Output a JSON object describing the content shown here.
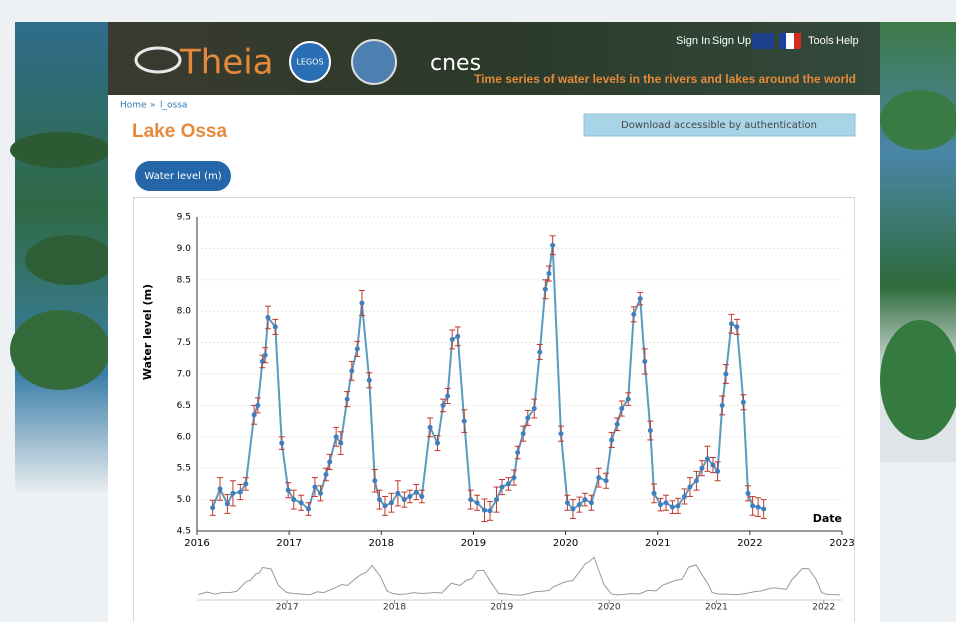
{
  "header": {
    "logo": "Theia",
    "partner_logo": "LEGOS",
    "agency_logo": "cnes",
    "links": [
      "Sign In",
      "Sign Up",
      "Tools",
      "Help"
    ],
    "tagline": "Time series of water levels in the rivers and lakes around the world"
  },
  "breadcrumb": {
    "home": "Home",
    "separator": "»",
    "current": "l_ossa"
  },
  "page_title": "Lake Ossa",
  "download_button": "Download accessible by authentication",
  "tab": "Water level (m)",
  "chart_data": {
    "type": "line",
    "y_label": "Water level (m)",
    "x_label": "Date",
    "color": "#5a9cc0",
    "marker_color": "#3f7fc0",
    "error_color": "#c0392b",
    "x": [
      2016.17,
      2016.25,
      2016.33,
      2016.39,
      2016.47,
      2016.53,
      2016.62,
      2016.66,
      2016.71,
      2016.74,
      2016.77,
      2016.85,
      2016.92,
      2016.99,
      2017.05,
      2017.13,
      2017.21,
      2017.28,
      2017.34,
      2017.4,
      2017.44,
      2017.51,
      2017.56,
      2017.63,
      2017.68,
      2017.74,
      2017.79,
      2017.87,
      2017.93,
      2017.98,
      2018.04,
      2018.11,
      2018.18,
      2018.25,
      2018.31,
      2018.38,
      2018.44,
      2018.53,
      2018.61,
      2018.67,
      2018.72,
      2018.77,
      2018.83,
      2018.9,
      2018.97,
      2019.04,
      2019.12,
      2019.18,
      2019.25,
      2019.31,
      2019.38,
      2019.44,
      2019.48,
      2019.54,
      2019.59,
      2019.66,
      2019.72,
      2019.78,
      2019.82,
      2019.86,
      2019.95,
      2020.02,
      2020.08,
      2020.15,
      2020.21,
      2020.28,
      2020.36,
      2020.44,
      2020.5,
      2020.56,
      2020.61,
      2020.68,
      2020.74,
      2020.81,
      2020.86,
      2020.92,
      2020.96,
      2021.03,
      2021.09,
      2021.16,
      2021.22,
      2021.29,
      2021.35,
      2021.42,
      2021.48,
      2021.54,
      2021.6,
      2021.65,
      2021.7,
      2021.74,
      2021.8,
      2021.86,
      2021.93,
      2021.98,
      2022.03,
      2022.09,
      2022.15
    ],
    "values": [
      4.87,
      5.17,
      4.93,
      5.1,
      5.12,
      5.25,
      6.35,
      6.5,
      7.2,
      7.3,
      7.9,
      7.75,
      5.9,
      5.15,
      5.0,
      4.95,
      4.85,
      5.2,
      5.1,
      5.4,
      5.6,
      6.0,
      5.9,
      6.6,
      7.05,
      7.4,
      8.13,
      6.9,
      5.3,
      5.0,
      4.9,
      4.95,
      5.1,
      5.0,
      5.05,
      5.12,
      5.05,
      6.15,
      5.9,
      6.5,
      6.65,
      7.55,
      7.6,
      6.25,
      5.0,
      4.95,
      4.83,
      4.82,
      5.0,
      5.2,
      5.25,
      5.35,
      5.75,
      6.05,
      6.3,
      6.45,
      7.35,
      8.35,
      8.6,
      9.05,
      6.05,
      4.95,
      4.85,
      4.92,
      5.0,
      4.95,
      5.35,
      5.3,
      5.95,
      6.2,
      6.45,
      6.6,
      7.95,
      8.2,
      7.2,
      6.1,
      5.1,
      4.92,
      4.95,
      4.88,
      4.9,
      5.05,
      5.2,
      5.3,
      5.5,
      5.65,
      5.55,
      5.45,
      6.5,
      7.0,
      7.8,
      7.75,
      6.55,
      5.1,
      4.9,
      4.88,
      4.85
    ],
    "errors": [
      0.12,
      0.18,
      0.15,
      0.2,
      0.12,
      0.1,
      0.15,
      0.12,
      0.1,
      0.12,
      0.18,
      0.12,
      0.1,
      0.12,
      0.15,
      0.12,
      0.1,
      0.15,
      0.12,
      0.1,
      0.12,
      0.15,
      0.18,
      0.12,
      0.15,
      0.12,
      0.2,
      0.12,
      0.18,
      0.15,
      0.15,
      0.15,
      0.2,
      0.12,
      0.1,
      0.12,
      0.1,
      0.15,
      0.12,
      0.1,
      0.12,
      0.15,
      0.15,
      0.18,
      0.15,
      0.12,
      0.18,
      0.15,
      0.2,
      0.12,
      0.1,
      0.12,
      0.1,
      0.12,
      0.12,
      0.15,
      0.12,
      0.15,
      0.12,
      0.15,
      0.12,
      0.12,
      0.15,
      0.12,
      0.1,
      0.12,
      0.15,
      0.12,
      0.12,
      0.1,
      0.12,
      0.1,
      0.12,
      0.1,
      0.2,
      0.15,
      0.15,
      0.1,
      0.12,
      0.1,
      0.12,
      0.12,
      0.15,
      0.15,
      0.12,
      0.2,
      0.12,
      0.15,
      0.15,
      0.15,
      0.15,
      0.12,
      0.12,
      0.12,
      0.15,
      0.15,
      0.15
    ],
    "xlim": [
      2016,
      2023
    ],
    "xticks": [
      2016,
      2017,
      2018,
      2019,
      2020,
      2021,
      2022,
      2023
    ],
    "ylim": [
      4.5,
      9.5
    ],
    "yticks": [
      4.5,
      {
        "value": 5,
        "label": "5.0"
      },
      5.5,
      {
        "value": 6,
        "label": "6.0"
      },
      6.5,
      {
        "value": 7,
        "label": "7.0"
      },
      7.5,
      {
        "value": 8,
        "label": "8.0"
      },
      8.5,
      {
        "value": 9,
        "label": "9.0"
      },
      9.5
    ],
    "grid": true,
    "navigator": {
      "xlim": [
        2016.16,
        2022.17
      ],
      "ylim": [
        4.5,
        9.3
      ],
      "xticks": [
        2017,
        2018,
        2019,
        2020,
        2021,
        2022
      ]
    }
  }
}
